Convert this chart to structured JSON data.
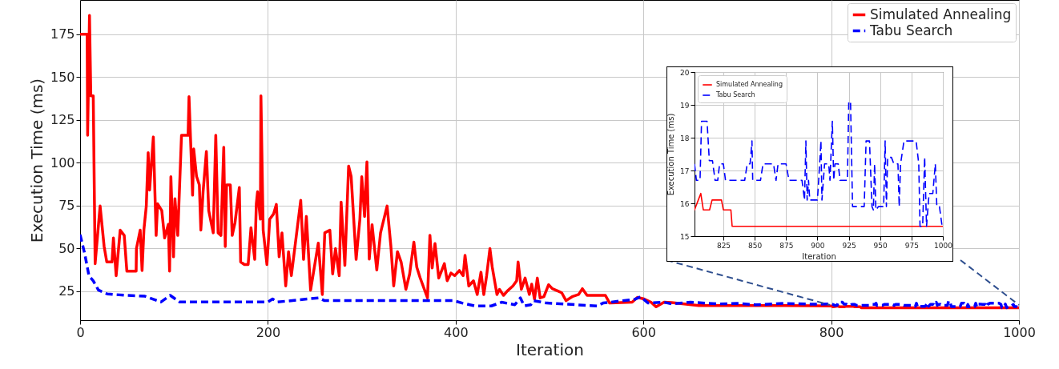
{
  "chart_data": [
    {
      "type": "line",
      "xlabel": "Iteration",
      "ylabel": "Execution Time (ms)",
      "xlim": [
        0,
        1000
      ],
      "ylim": [
        8,
        195
      ],
      "xticks": [
        0,
        200,
        400,
        600,
        800,
        1000
      ],
      "yticks": [
        25,
        50,
        75,
        100,
        125,
        150,
        175
      ],
      "grid": true,
      "legend": "top right",
      "series": [
        {
          "name": "Simulated Annealing",
          "color": "#ff0000",
          "line_style": "solid",
          "x": [
            0,
            7.5,
            8,
            10,
            11.4,
            14,
            16,
            21.3,
            25.6,
            28.4,
            34,
            35.5,
            38.4,
            42.7,
            47,
            49.8,
            59.7,
            60,
            64,
            66,
            68,
            70.5,
            72.5,
            74,
            78,
            81,
            82.5,
            87,
            90,
            94,
            95.3,
            96.7,
            99.5,
            101,
            104,
            108,
            115,
            116,
            119.8,
            121,
            124,
            127,
            128.6,
            131,
            134.5,
            137,
            141.8,
            144.5,
            147,
            150,
            153,
            154.6,
            156,
            160,
            162,
            165,
            169.6,
            171,
            175,
            179,
            182,
            186,
            187.7,
            189,
            192,
            192.6,
            195,
            199,
            202,
            206,
            209,
            212,
            215,
            219,
            222,
            225,
            235,
            238,
            241,
            245.5,
            253.7,
            258,
            260.6,
            266,
            269,
            272,
            276,
            278,
            282,
            286,
            288.7,
            294,
            298,
            300,
            303,
            305.5,
            308,
            311,
            316,
            320,
            327,
            331,
            334,
            338,
            342,
            347,
            351,
            355.5,
            358.6,
            362,
            370,
            372.6,
            375,
            378,
            382,
            388,
            391,
            395,
            399,
            404,
            408,
            410,
            414,
            419,
            423,
            427,
            430,
            433,
            436.5,
            439,
            444,
            446.7,
            451,
            455,
            461,
            465,
            466.5,
            470,
            474,
            478.5,
            481,
            484,
            487,
            490,
            494,
            499,
            503,
            509,
            513,
            517.6,
            524,
            531,
            535,
            540,
            559.5,
            564,
            588,
            593.6,
            600.7,
            608,
            613.6,
            622,
            630,
            659,
            700,
            750,
            800,
            802,
            805,
            807,
            809,
            814,
            816,
            823.5,
            825,
            828.7,
            831,
            832,
            1000
          ],
          "values": [
            175,
            175,
            116,
            186,
            139,
            139,
            41,
            74.7,
            51,
            42,
            42,
            56,
            34,
            60.6,
            57.5,
            36.6,
            36.6,
            49.8,
            60.6,
            37,
            61,
            74.7,
            105.8,
            84,
            115,
            57.5,
            76,
            72,
            56,
            64,
            36.6,
            91.8,
            45,
            79,
            57.5,
            116,
            116,
            138.5,
            81,
            108,
            92,
            87,
            60.6,
            83,
            106.5,
            72,
            59,
            116,
            59,
            57.5,
            109,
            51,
            87,
            87,
            57.5,
            65,
            85.5,
            42,
            40.5,
            40.5,
            62,
            43.5,
            76,
            83,
            67,
            139,
            60.6,
            40.5,
            67,
            70,
            75.6,
            45,
            59,
            28,
            48,
            34,
            78,
            43.5,
            68.6,
            25.5,
            53,
            23,
            59,
            60.6,
            35,
            49.8,
            34,
            77,
            40,
            98,
            92,
            43.5,
            67,
            91.8,
            68.6,
            100.4,
            43.7,
            63.8,
            37.3,
            59,
            74.7,
            51.3,
            28,
            48,
            41.8,
            26,
            35,
            53.6,
            39,
            33,
            21,
            57.6,
            38.5,
            52.8,
            32.6,
            41,
            31,
            35.5,
            34,
            37,
            34,
            45.9,
            28,
            31,
            23,
            36,
            23,
            34,
            49.8,
            39,
            23,
            26,
            22.5,
            25,
            28,
            31,
            42,
            26,
            32.6,
            23,
            29,
            20.3,
            32.6,
            21,
            21.7,
            28.7,
            26.4,
            25,
            24,
            19.4,
            21.7,
            23,
            26.4,
            22.5,
            22.5,
            18,
            18.5,
            21.3,
            20.4,
            18.5,
            15.8,
            18.5,
            18.3,
            16.5,
            16.5,
            16.5,
            16.3,
            15.8,
            16.1,
            16.3,
            15.8,
            15.8,
            16.1,
            16.1,
            15.8,
            15.8,
            15.8,
            15.3,
            15.3
          ]
        },
        {
          "name": "Tabu Search",
          "color": "#0000ff",
          "line_style": "dashed",
          "x": [
            0,
            5,
            9.4,
            14,
            19.5,
            29,
            49,
            69,
            86,
            96,
            106,
            200,
            205,
            210,
            254,
            260,
            398,
            407,
            421,
            438,
            449,
            463,
            469,
            473,
            480,
            483,
            497,
            551,
            557,
            591,
            597,
            605,
            622,
            630,
            650,
            680,
            700,
            720,
            750,
            780,
            800,
            801.8,
            803.5,
            806.4,
            807.6,
            812,
            813.8,
            816.3,
            818.4,
            820.5,
            822,
            825,
            826.7,
            842,
            844,
            846.3,
            847.8,
            848.4,
            854.6,
            856.6,
            865,
            867,
            868.6,
            875,
            877.3,
            887.7,
            889.7,
            890.8,
            891.8,
            892.9,
            893.9,
            900,
            901,
            902.8,
            903.6,
            905.7,
            909,
            910,
            911.9,
            913,
            914,
            916.6,
            918,
            923.9,
            925,
            926.4,
            928,
            937.3,
            938.8,
            941.5,
            943.5,
            944.6,
            945.6,
            946.6,
            948.7,
            952.8,
            954,
            955,
            956,
            959,
            961,
            964.2,
            965.2,
            966.3,
            969,
            978.7,
            980.8,
            981.8,
            983.9,
            985.5,
            987,
            989,
            992,
            994,
            995.2,
            997.3,
            999.4,
            1000
          ],
          "values": [
            58,
            46.6,
            34,
            31,
            25.6,
            23.3,
            22.5,
            22,
            18.6,
            22.5,
            18.6,
            18.6,
            20.4,
            18.6,
            21,
            19.5,
            19.4,
            18,
            16.3,
            16.3,
            18.5,
            17,
            21,
            16.3,
            17,
            19.4,
            18,
            16.3,
            18,
            20.2,
            21.7,
            18,
            18.5,
            17.5,
            18.5,
            17.5,
            17.8,
            17,
            17.8,
            17.3,
            17.5,
            17.2,
            16.7,
            16.7,
            18.5,
            18.5,
            17.3,
            17.3,
            16.7,
            16.7,
            17.2,
            17.2,
            16.7,
            16.7,
            17.2,
            17.2,
            17.9,
            16.7,
            16.7,
            17.2,
            17.2,
            16.7,
            17.2,
            17.2,
            16.7,
            16.7,
            16.1,
            17.9,
            16.1,
            16.7,
            16.1,
            16.1,
            16.7,
            17.9,
            16.1,
            17.2,
            17.2,
            16.7,
            18.5,
            16.7,
            17.2,
            17.2,
            16.7,
            16.7,
            19.1,
            19.1,
            15.9,
            15.9,
            17.9,
            17.9,
            15.9,
            15.8,
            17.2,
            15.8,
            15.9,
            15.9,
            17.9,
            15.9,
            17.4,
            17.4,
            17.2,
            17.2,
            15.9,
            17.2,
            17.9,
            17.9,
            17.2,
            15.3,
            15.3,
            17.4,
            15.3,
            16.3,
            16.3,
            17.2,
            15.9,
            15.9,
            15.3,
            15.3
          ]
        }
      ]
    },
    {
      "type": "line",
      "xlabel": "Iteration",
      "ylabel": "Execution Time (ms)",
      "xlim": [
        802,
        1000
      ],
      "ylim": [
        15,
        20
      ],
      "xticks": [
        825,
        850,
        875,
        900,
        925,
        950,
        975,
        1000
      ],
      "yticks": [
        15,
        16,
        17,
        18,
        19,
        20
      ],
      "grid": true,
      "legend": "top left",
      "series": [
        {
          "name": "Simulated Annealing",
          "color": "#ff0000",
          "line_style": "solid",
          "x": [
            802,
            805,
            807,
            809,
            814,
            816,
            823.5,
            825,
            828.7,
            831,
            832,
            1000
          ],
          "values": [
            15.8,
            16.1,
            16.3,
            15.8,
            15.8,
            16.1,
            16.1,
            15.8,
            15.8,
            15.8,
            15.3,
            15.3
          ]
        },
        {
          "name": "Tabu Search",
          "color": "#0000ff",
          "line_style": "dashed",
          "x": [
            802,
            803.5,
            806.4,
            807.6,
            812,
            813.8,
            816.3,
            818.4,
            820.5,
            822,
            825,
            826.7,
            842,
            844,
            846.3,
            847.8,
            848.4,
            854.6,
            856.6,
            865,
            867,
            868.6,
            875,
            877.3,
            887.7,
            889.7,
            890.8,
            891.8,
            892.9,
            893.9,
            900,
            901,
            902.8,
            903.6,
            905.7,
            909,
            910,
            911.9,
            913,
            914,
            916.6,
            918,
            923.9,
            925,
            926.4,
            928,
            937.3,
            938.8,
            941.5,
            943.5,
            944.6,
            945.6,
            946.6,
            948.7,
            952.8,
            954,
            955,
            956,
            959,
            961,
            964.2,
            965.2,
            966.3,
            969,
            978.7,
            980.8,
            981.8,
            983.9,
            985.5,
            987,
            989,
            992,
            994,
            995.2,
            997.3,
            999.4,
            1000
          ],
          "values": [
            17.2,
            16.7,
            16.7,
            18.5,
            18.5,
            17.3,
            17.3,
            16.7,
            16.7,
            17.2,
            17.2,
            16.7,
            16.7,
            17.2,
            17.2,
            17.9,
            16.7,
            16.7,
            17.2,
            17.2,
            16.7,
            17.2,
            17.2,
            16.7,
            16.7,
            16.1,
            17.9,
            16.1,
            16.7,
            16.1,
            16.1,
            16.7,
            17.9,
            16.1,
            17.2,
            17.2,
            16.7,
            18.5,
            16.7,
            17.2,
            17.2,
            16.7,
            16.7,
            19.1,
            19.1,
            15.9,
            15.9,
            17.9,
            17.9,
            15.9,
            15.8,
            17.2,
            15.8,
            15.9,
            15.9,
            17.9,
            15.9,
            17.4,
            17.4,
            17.2,
            17.2,
            15.9,
            17.2,
            17.9,
            17.9,
            17.2,
            15.3,
            15.3,
            17.4,
            15.3,
            16.3,
            16.3,
            17.2,
            15.9,
            15.9,
            15.3,
            15.3
          ]
        }
      ]
    }
  ]
}
